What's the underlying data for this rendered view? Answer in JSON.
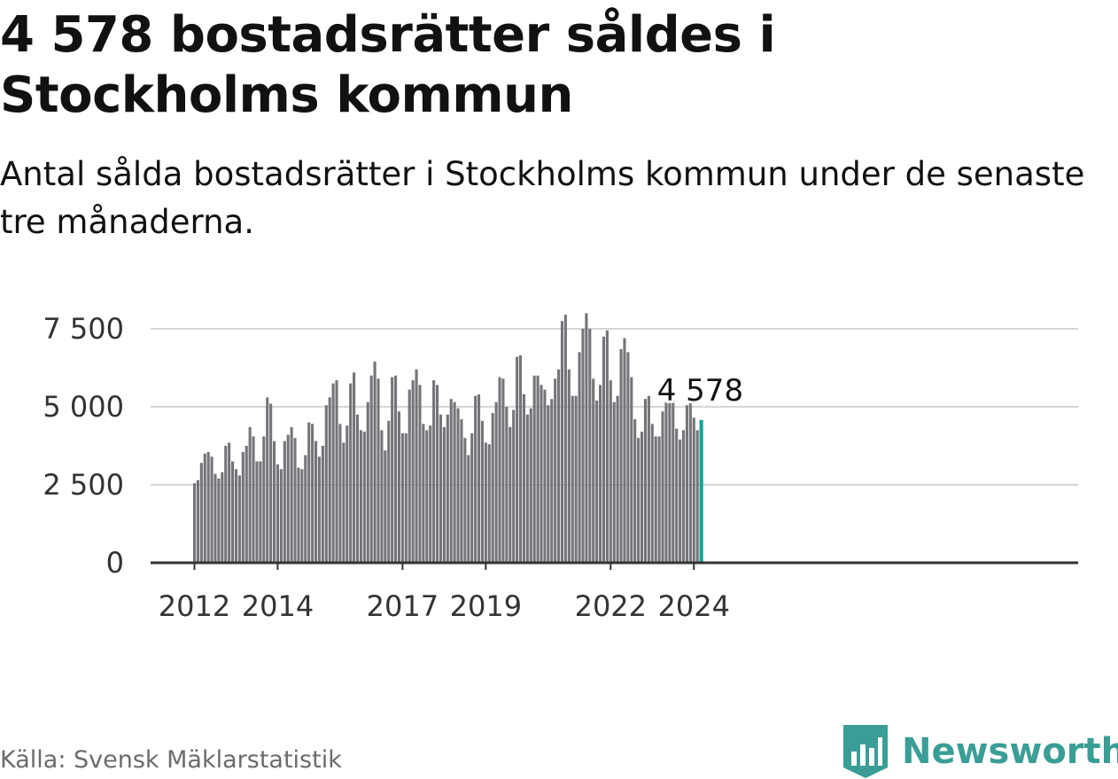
{
  "header": {
    "title": "4 578 bostadsrätter såldes i Stockholms kommun",
    "subtitle": "Antal sålda bostadsrätter i Stockholms kommun under de senaste tre månaderna."
  },
  "footer": {
    "source": "Källa: Svensk Mäklarstatistik",
    "brand": "Newsworthy"
  },
  "colors": {
    "bar": "#747479",
    "highlight": "#1aa39a",
    "grid": "#d6d6d6",
    "axis": "#333333",
    "brand": "#3a9e96"
  },
  "chart_data": {
    "type": "bar",
    "x_start": "2012-01",
    "x_interval": "month",
    "x_ticks": [
      "2012",
      "2014",
      "2017",
      "2019",
      "2022",
      "2024"
    ],
    "y_ticks": [
      "0",
      "2 500",
      "5 000",
      "7 500"
    ],
    "y_tick_values": [
      0,
      2500,
      5000,
      7500
    ],
    "ylim": [
      0,
      8000
    ],
    "grid": true,
    "values": [
      2550,
      2650,
      3200,
      3500,
      3550,
      3400,
      2850,
      2700,
      2900,
      3750,
      3850,
      3250,
      3000,
      2800,
      3550,
      3750,
      4350,
      4050,
      3250,
      3250,
      4050,
      5300,
      5100,
      3900,
      3150,
      3000,
      3900,
      4100,
      4350,
      4000,
      3050,
      3000,
      3450,
      4500,
      4450,
      3900,
      3400,
      3750,
      5050,
      5300,
      5750,
      5850,
      4450,
      3850,
      4400,
      5750,
      6100,
      4750,
      4250,
      4200,
      5150,
      6000,
      6450,
      5900,
      4250,
      3600,
      4550,
      5950,
      6000,
      4850,
      4150,
      4150,
      5550,
      5850,
      6200,
      5700,
      4450,
      4250,
      4400,
      5850,
      5700,
      4750,
      4350,
      4750,
      5250,
      5150,
      4950,
      4600,
      4000,
      3450,
      4150,
      5350,
      5400,
      4550,
      3850,
      3800,
      4800,
      5150,
      5950,
      5900,
      5000,
      4350,
      4900,
      6600,
      6650,
      5400,
      4750,
      4950,
      6000,
      6000,
      5700,
      5550,
      5050,
      5250,
      5900,
      6200,
      7750,
      7950,
      6200,
      5350,
      5350,
      6750,
      7500,
      8000,
      7500,
      5900,
      5200,
      5700,
      7250,
      7450,
      5850,
      5150,
      5350,
      6850,
      7200,
      6750,
      5950,
      4600,
      4000,
      4200,
      5250,
      5350,
      4450,
      4050,
      4050,
      4850,
      5150,
      5450,
      5200,
      4300,
      3950,
      4250,
      5050,
      5200,
      4650,
      4250,
      4578
    ],
    "highlight_value": "4 578"
  }
}
